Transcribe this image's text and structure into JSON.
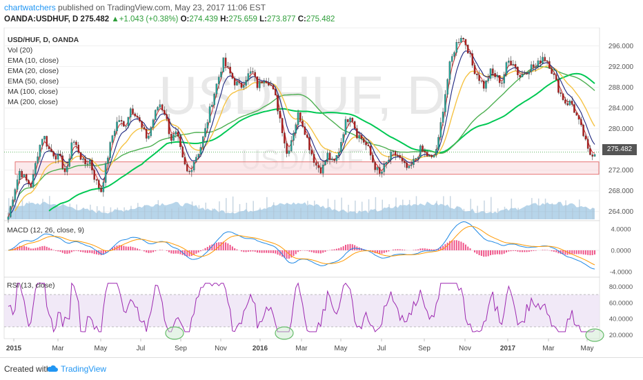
{
  "header": {
    "author": "chartwatchers",
    "published": " published on TradingView.com, May 23, 2017 11:06 EST",
    "symbol": "OANDA:USDHUF, D",
    "last": "275.482",
    "change": "+1.043 (+0.38%)",
    "open_label": "O:",
    "open": "274.439",
    "high_label": "H:",
    "high": "275.659",
    "low_label": "L:",
    "low": "273.877",
    "close_label": "C:",
    "close": "275.482"
  },
  "legend": [
    "USD/HUF, D, OANDA",
    "Vol (20)",
    "EMA (10, close)",
    "EMA (20, close)",
    "EMA (50, close)",
    "MA (100, close)",
    "MA (200, close)"
  ],
  "watermark": {
    "big": "USDHUF, D",
    "small": "USD/HUF"
  },
  "price_tag": "275.482",
  "macd_label": "MACD (12, 26, close, 9)",
  "rsi_label": "RSI (13, close)",
  "footer": {
    "created": "Created with",
    "brand": "TradingView"
  },
  "colors": {
    "up": "#26a69a",
    "down": "#b71c1c",
    "ema10": "#d32f2f",
    "ema20": "#1a237e",
    "ema50": "#f5c242",
    "ma100": "#4caf50",
    "ma200": "#00c853",
    "volume": "#7bb3d9",
    "macd": "#1e88e5",
    "signal": "#ff9800",
    "hist": "#e91e63",
    "rsi": "#9c27b0",
    "support_zone": "#f8d7da",
    "support_border": "#e57373",
    "highlight_circle": "#66bb6a"
  },
  "chart_data": {
    "type": "line",
    "title": "USD/HUF, D, OANDA",
    "x_ticks": [
      "2015",
      "Mar",
      "May",
      "Jul",
      "Sep",
      "Nov",
      "2016",
      "Mar",
      "May",
      "Jul",
      "Sep",
      "Nov",
      "2017",
      "Mar",
      "May"
    ],
    "y_ticks": [
      "296.000",
      "292.000",
      "288.000",
      "284.000",
      "280.000",
      "276.000",
      "272.000",
      "268.000",
      "264.000"
    ],
    "ylim": [
      262.5,
      299
    ],
    "support_zone": [
      271.2,
      273.6
    ],
    "series": [
      {
        "name": "USD/HUF",
        "x": [
          0,
          2,
          4,
          6,
          8,
          10,
          12,
          14,
          16,
          18,
          20,
          22,
          24,
          26,
          28,
          30,
          32,
          34,
          36,
          38,
          40,
          42,
          44,
          46,
          48,
          50,
          52,
          54,
          56,
          58,
          60,
          62,
          64,
          66,
          68,
          70,
          72,
          74,
          76,
          78,
          80,
          82,
          84,
          86,
          88,
          90,
          92,
          94,
          96,
          98,
          100,
          102,
          104,
          106,
          108,
          110,
          112,
          114,
          116,
          118,
          120,
          122,
          124,
          126,
          128,
          130,
          132,
          134,
          136,
          138,
          140,
          142,
          144,
          146,
          148,
          150,
          152,
          154,
          156,
          158,
          160,
          162,
          164,
          166,
          168,
          170,
          172,
          174,
          176,
          178,
          180,
          182,
          184,
          186,
          188,
          190,
          192,
          194,
          196,
          198,
          200,
          202
        ],
        "values": [
          263,
          268,
          272,
          270,
          269,
          275,
          279,
          276,
          275,
          274,
          271,
          278,
          276,
          273,
          274,
          270,
          268,
          274,
          279,
          282,
          280,
          284,
          283,
          280,
          278,
          282,
          285,
          283,
          278,
          279,
          274,
          271,
          274,
          276,
          280,
          285,
          289,
          293,
          291,
          289,
          288,
          290,
          291,
          288,
          290,
          289,
          286,
          281,
          275,
          279,
          283,
          280,
          276,
          273,
          272,
          275,
          273,
          276,
          281,
          283,
          279,
          278,
          276,
          273,
          271,
          273,
          275,
          275,
          273,
          272,
          274,
          276,
          275,
          274,
          277,
          285,
          292,
          296,
          298,
          296,
          292,
          290,
          288,
          291,
          290,
          289,
          293,
          293,
          290,
          291,
          292,
          292,
          294,
          293,
          290,
          287,
          285,
          285,
          282,
          279,
          275,
          275.5
        ]
      },
      {
        "name": "EMA (10, close)"
      },
      {
        "name": "EMA (20, close)"
      },
      {
        "name": "EMA (50, close)"
      },
      {
        "name": "MA (100, close)"
      },
      {
        "name": "MA (200, close)"
      }
    ],
    "macd": {
      "label": "MACD (12, 26, close, 9)",
      "y_ticks": [
        "4.0000",
        "0.0000",
        "-4.0000"
      ],
      "ylim": [
        -4.5,
        5
      ]
    },
    "rsi": {
      "label": "RSI (13, close)",
      "y_ticks": [
        "80.0000",
        "60.0000",
        "40.0000",
        "20.0000"
      ],
      "ylim": [
        18,
        88
      ],
      "bands": [
        30,
        70
      ]
    }
  }
}
